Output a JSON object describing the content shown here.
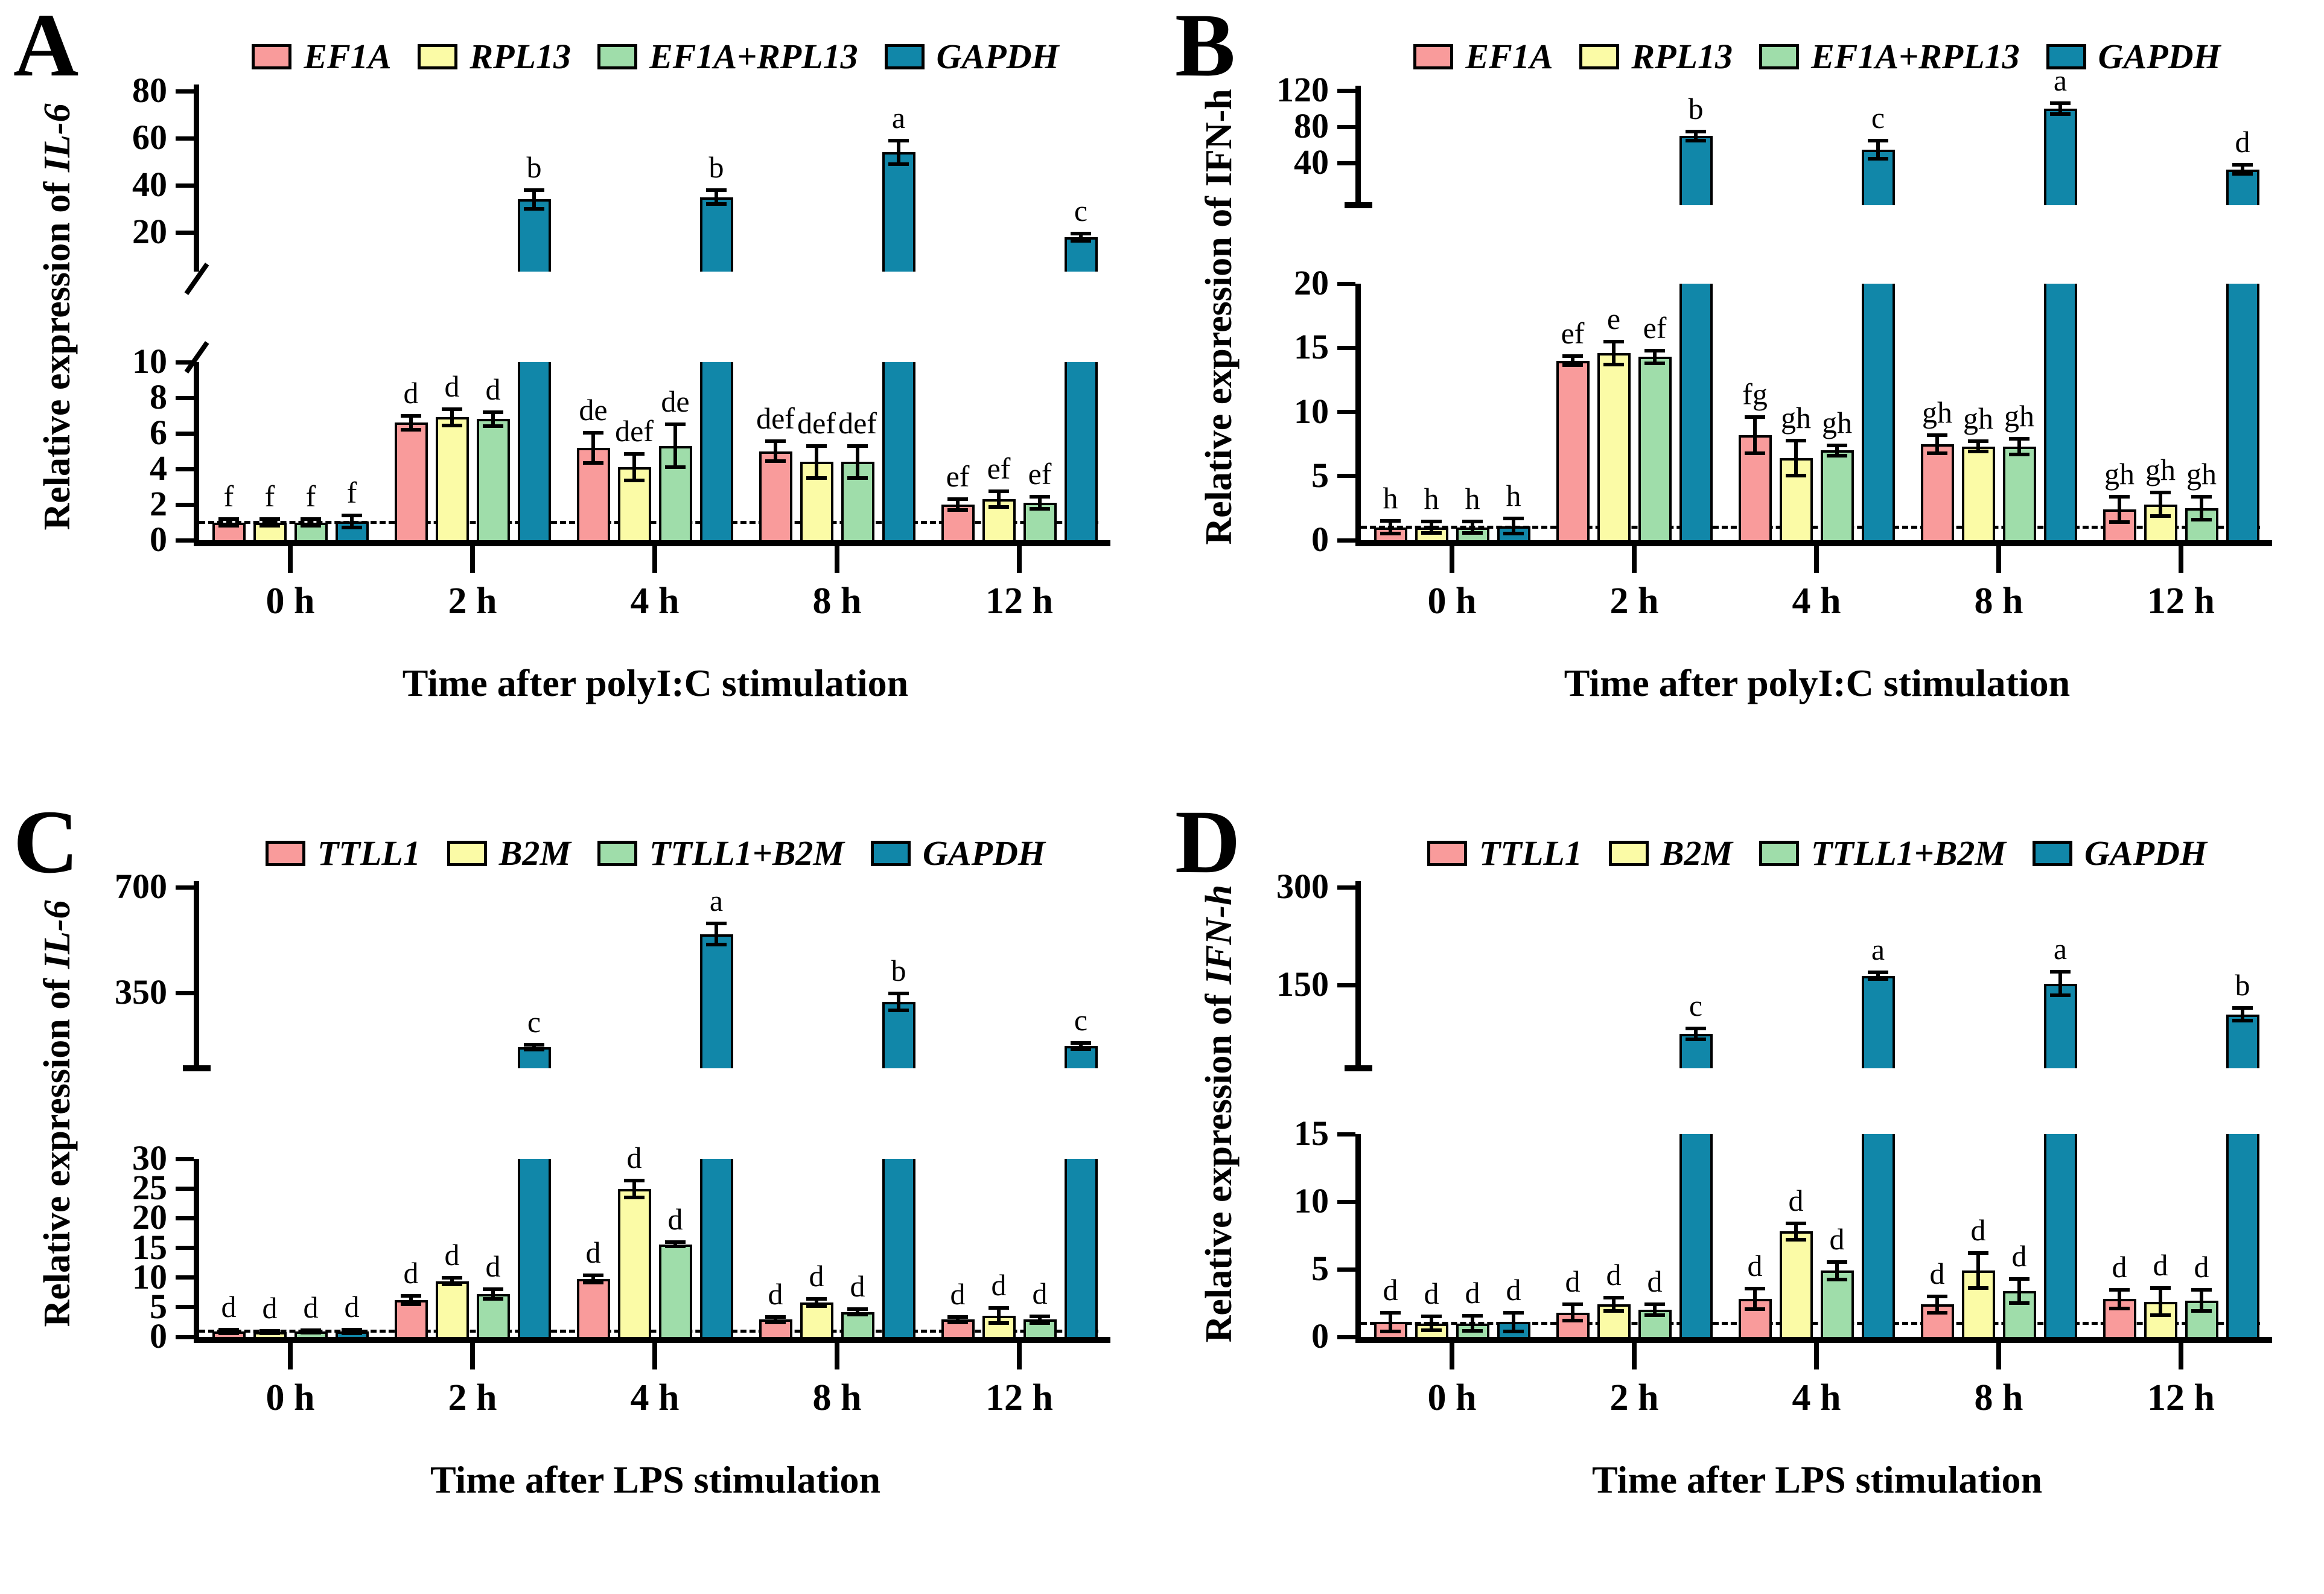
{
  "colors": {
    "pink": "#F99B9B",
    "yellow": "#FBFBA6",
    "green": "#9FDDAA",
    "teal": "#1187A9",
    "stroke": "#000000"
  },
  "chart_data": [
    {
      "id": "A",
      "panel_letter": "A",
      "type": "bar",
      "ylabel_prefix": "Relative expression of",
      "ylabel_gene": "IL-6",
      "ylabel_gene_italic": true,
      "xlabel": "Time after polyI:C stimulation",
      "categories": [
        "0 h",
        "2 h",
        "4 h",
        "8 h",
        "12 h"
      ],
      "axis_break": true,
      "upper_ticks": [
        20,
        40,
        60,
        80
      ],
      "lower_ticks": [
        0,
        2,
        4,
        6,
        8,
        10
      ],
      "reference_line": 1,
      "series": [
        {
          "name": "EF1A",
          "color_key": "pink",
          "values": [
            1.0,
            6.6,
            5.2,
            5.0,
            2.0
          ],
          "errors": [
            0.2,
            0.4,
            0.85,
            0.55,
            0.3
          ],
          "letters": [
            "f",
            "d",
            "de",
            "def",
            "ef"
          ]
        },
        {
          "name": "RPL13",
          "color_key": "yellow",
          "values": [
            1.0,
            6.9,
            4.1,
            4.4,
            2.3
          ],
          "errors": [
            0.2,
            0.45,
            0.75,
            0.9,
            0.45
          ],
          "letters": [
            "f",
            "d",
            "def",
            "def",
            "ef"
          ]
        },
        {
          "name": "EF1A+RPL13",
          "color_key": "green",
          "values": [
            1.0,
            6.8,
            5.3,
            4.4,
            2.1
          ],
          "errors": [
            0.2,
            0.4,
            1.2,
            0.9,
            0.35
          ],
          "letters": [
            "f",
            "d",
            "de",
            "def",
            "ef"
          ]
        },
        {
          "name": "GAPDH",
          "color_key": "teal",
          "values": [
            1.05,
            34,
            35,
            54,
            18
          ],
          "errors": [
            0.35,
            4,
            3,
            5,
            1.5
          ],
          "letters": [
            "f",
            "b",
            "b",
            "a",
            "c"
          ]
        }
      ]
    },
    {
      "id": "B",
      "panel_letter": "B",
      "type": "bar",
      "ylabel_prefix": "Relative expression of",
      "ylabel_gene": "IFN-h",
      "ylabel_gene_italic": false,
      "xlabel": "Time after polyI:C stimulation",
      "categories": [
        "0 h",
        "2 h",
        "4 h",
        "8 h",
        "12 h"
      ],
      "axis_break": true,
      "upper_ticks": [
        40,
        80,
        120
      ],
      "lower_ticks": [
        0,
        5,
        10,
        15,
        20
      ],
      "reference_line": 1,
      "series": [
        {
          "name": "EF1A",
          "color_key": "pink",
          "values": [
            1.0,
            14.0,
            8.2,
            7.5,
            2.4
          ],
          "errors": [
            0.5,
            0.35,
            1.4,
            0.7,
            1.0
          ],
          "letters": [
            "h",
            "ef",
            "fg",
            "gh",
            "gh"
          ]
        },
        {
          "name": "RPL13",
          "color_key": "yellow",
          "values": [
            1.0,
            14.6,
            6.4,
            7.3,
            2.8
          ],
          "errors": [
            0.45,
            0.9,
            1.35,
            0.4,
            0.9
          ],
          "letters": [
            "h",
            "e",
            "gh",
            "gh",
            "gh"
          ]
        },
        {
          "name": "EF1A+RPL13",
          "color_key": "green",
          "values": [
            1.0,
            14.3,
            7.0,
            7.3,
            2.5
          ],
          "errors": [
            0.45,
            0.5,
            0.4,
            0.6,
            0.9
          ],
          "letters": [
            "h",
            "ef",
            "gh",
            "gh",
            "gh"
          ]
        },
        {
          "name": "GAPDH",
          "color_key": "teal",
          "values": [
            1.1,
            70,
            55,
            100,
            33
          ],
          "errors": [
            0.6,
            5,
            10,
            6,
            5
          ],
          "letters": [
            "h",
            "b",
            "c",
            "a",
            "d"
          ]
        }
      ]
    },
    {
      "id": "C",
      "panel_letter": "C",
      "type": "bar",
      "ylabel_prefix": "Relative expression of",
      "ylabel_gene": "IL-6",
      "ylabel_gene_italic": true,
      "xlabel": "Time after LPS stimulation",
      "categories": [
        "0 h",
        "2 h",
        "4 h",
        "8 h",
        "12 h"
      ],
      "axis_break": true,
      "upper_ticks": [
        350,
        700
      ],
      "lower_ticks": [
        0,
        5,
        10,
        15,
        20,
        25,
        30
      ],
      "reference_line": 1,
      "series": [
        {
          "name": "TTLL1",
          "color_key": "pink",
          "values": [
            0.9,
            6.2,
            9.8,
            2.9,
            2.9
          ],
          "errors": [
            0.3,
            0.7,
            0.6,
            0.5,
            0.45
          ],
          "letters": [
            "d",
            "d",
            "d",
            "d",
            "d"
          ]
        },
        {
          "name": "B2M",
          "color_key": "yellow",
          "values": [
            0.85,
            9.4,
            24.9,
            5.8,
            3.6
          ],
          "errors": [
            0.2,
            0.6,
            1.4,
            0.6,
            1.3
          ],
          "letters": [
            "d",
            "d",
            "d",
            "d",
            "d"
          ]
        },
        {
          "name": "TTLL1+B2M",
          "color_key": "green",
          "values": [
            0.9,
            7.2,
            15.6,
            4.2,
            2.9
          ],
          "errors": [
            0.2,
            0.8,
            0.35,
            0.45,
            0.6
          ],
          "letters": [
            "d",
            "d",
            "d",
            "d",
            "d"
          ]
        },
        {
          "name": "GAPDH",
          "color_key": "teal",
          "values": [
            0.9,
            170,
            545,
            320,
            175
          ],
          "errors": [
            0.3,
            8,
            35,
            28,
            10
          ],
          "letters": [
            "d",
            "c",
            "a",
            "b",
            "c"
          ]
        }
      ]
    },
    {
      "id": "D",
      "panel_letter": "D",
      "type": "bar",
      "ylabel_prefix": "Relative expression of",
      "ylabel_gene": "IFN-h",
      "ylabel_gene_italic": true,
      "xlabel": "Time after LPS stimulation",
      "categories": [
        "0 h",
        "2 h",
        "4 h",
        "8 h",
        "12 h"
      ],
      "axis_break": true,
      "upper_ticks": [
        150,
        300
      ],
      "lower_ticks": [
        0,
        5,
        10,
        15
      ],
      "reference_line": 1,
      "series": [
        {
          "name": "TTLL1",
          "color_key": "pink",
          "values": [
            1.1,
            1.8,
            2.8,
            2.4,
            2.8
          ],
          "errors": [
            0.7,
            0.6,
            0.75,
            0.6,
            0.7
          ],
          "letters": [
            "d",
            "d",
            "d",
            "d",
            "d"
          ]
        },
        {
          "name": "B2M",
          "color_key": "yellow",
          "values": [
            1.0,
            2.4,
            7.8,
            4.9,
            2.6
          ],
          "errors": [
            0.5,
            0.5,
            0.6,
            1.3,
            1.0
          ],
          "letters": [
            "d",
            "d",
            "d",
            "d",
            "d"
          ]
        },
        {
          "name": "TTLL1+B2M",
          "color_key": "green",
          "values": [
            1.0,
            2.0,
            4.9,
            3.4,
            2.7
          ],
          "errors": [
            0.55,
            0.4,
            0.65,
            0.9,
            0.8
          ],
          "letters": [
            "d",
            "d",
            "d",
            "d",
            "d"
          ]
        },
        {
          "name": "GAPDH",
          "color_key": "teal",
          "values": [
            1.1,
            75,
            164,
            152,
            105
          ],
          "errors": [
            0.7,
            8,
            5,
            18,
            10
          ],
          "letters": [
            "d",
            "c",
            "a",
            "a",
            "b"
          ]
        }
      ]
    }
  ]
}
